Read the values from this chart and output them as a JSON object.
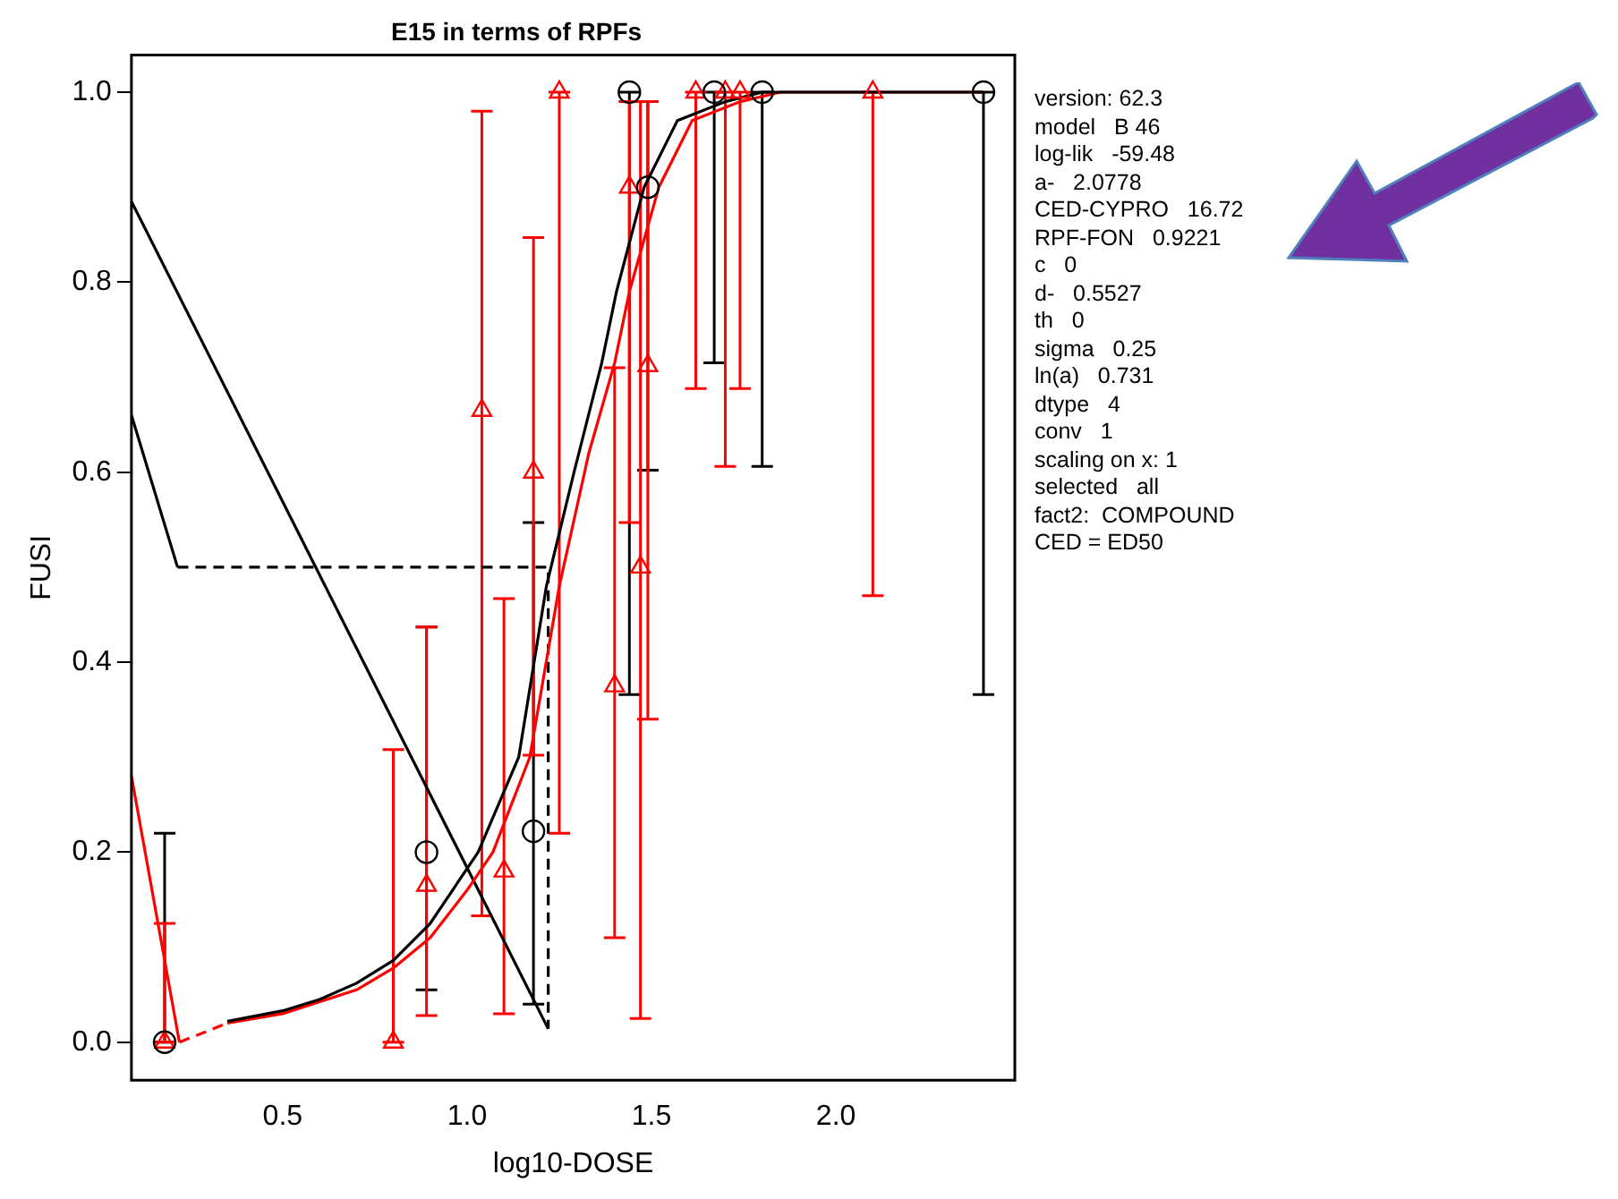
{
  "chart_data": {
    "type": "scatter",
    "title": "E15 in terms of RPFs",
    "xlabel": "log10-DOSE",
    "ylabel": "FUSI",
    "xlim": [
      0.09,
      2.485
    ],
    "ylim": [
      -0.04,
      1.039
    ],
    "xticks": [
      0.5,
      {
        "value": 1,
        "label": "1.0"
      },
      1.5,
      {
        "value": 2,
        "label": "2.0"
      }
    ],
    "yticks": [
      {
        "value": 0,
        "label": "0.0"
      },
      0.2,
      0.4,
      0.6,
      0.8,
      {
        "value": 1,
        "label": "1.0"
      }
    ],
    "grid": false,
    "legend": false,
    "series": [
      {
        "type": "scatter",
        "color": "#000000",
        "marker": "circle",
        "x": [
          0.18,
          0.89,
          1.18,
          1.44,
          1.49,
          1.67,
          1.8,
          2.4
        ],
        "values": [
          0,
          0.2,
          0.222,
          1,
          0.9,
          1,
          1,
          1
        ],
        "errors": [
          [
            0,
            0.22
          ],
          [
            0.055,
            0.437
          ],
          [
            0.04,
            0.547
          ],
          [
            0.366,
            1
          ],
          [
            0.602,
            0.99
          ],
          [
            0.715,
            1
          ],
          [
            0.606,
            1
          ],
          [
            0.366,
            1
          ]
        ]
      },
      {
        "type": "scatter",
        "color": "#ff0000",
        "marker": "triangle",
        "x": [
          0.18,
          0.8,
          0.89,
          1.04,
          1.1,
          1.18,
          1.25,
          1.4,
          1.44,
          1.47,
          1.49,
          1.62,
          1.7,
          1.74,
          2.1
        ],
        "values": [
          0,
          0,
          0.165,
          0.665,
          0.18,
          0.6,
          1,
          0.375,
          0.9,
          0.5,
          0.712,
          1,
          1,
          1,
          1
        ],
        "errors": [
          [
            0,
            0.125
          ],
          [
            0,
            0.308
          ],
          [
            0.028,
            0.437
          ],
          [
            0.133,
            0.98
          ],
          [
            0.03,
            0.467
          ],
          [
            0.302,
            0.847
          ],
          [
            0.22,
            1
          ],
          [
            0.11,
            0.71
          ],
          [
            0.547,
            0.99
          ],
          [
            0.025,
            0.99
          ],
          [
            0.34,
            0.99
          ],
          [
            0.688,
            1
          ],
          [
            0.606,
            1
          ],
          [
            0.688,
            1
          ],
          [
            0.47,
            1
          ]
        ]
      },
      {
        "type": "line",
        "color": "#000000",
        "line_style": "solid",
        "x": [
          0.35,
          0.5,
          0.6,
          0.7,
          0.8,
          0.9,
          1.03,
          1.14,
          1.215,
          1.29,
          1.365,
          1.405,
          1.48,
          1.57,
          1.7,
          1.8,
          2.4
        ],
        "values": [
          0.022,
          0.033,
          0.045,
          0.062,
          0.086,
          0.125,
          0.2,
          0.3,
          0.48,
          0.6,
          0.715,
          0.79,
          0.9,
          0.97,
          0.99,
          1,
          1
        ]
      },
      {
        "type": "line",
        "color": "#ff0000",
        "line_style": "solid",
        "x": [
          0.35,
          0.5,
          0.7,
          0.8,
          0.9,
          1.0,
          1.07,
          1.17,
          1.25,
          1.33,
          1.4,
          1.44,
          1.52,
          1.61,
          1.74,
          1.85,
          2.4
        ],
        "values": [
          0.02,
          0.03,
          0.055,
          0.078,
          0.11,
          0.16,
          0.2,
          0.3,
          0.48,
          0.62,
          0.715,
          0.79,
          0.9,
          0.97,
          0.99,
          1,
          1
        ]
      },
      {
        "type": "line",
        "color": "#000000",
        "line_style": "solid",
        "x": [
          0.09,
          1.22
        ],
        "values": [
          0.885,
          0.014
        ]
      },
      {
        "type": "line",
        "color": "#000000",
        "line_style": "solid",
        "x": [
          0.09,
          0.215
        ],
        "values": [
          0.66,
          0.5
        ]
      },
      {
        "type": "line",
        "color": "#000000",
        "line_style": "dashed",
        "x": [
          0.215,
          1.22,
          1.22
        ],
        "values": [
          0.5,
          0.5,
          0.014
        ]
      },
      {
        "type": "line",
        "color": "#ff0000",
        "line_style": "solid",
        "x": [
          0.09,
          0.22
        ],
        "values": [
          0.28,
          0
        ]
      },
      {
        "type": "line",
        "color": "#ff0000",
        "line_style": "dashed",
        "x": [
          0.22,
          0.35
        ],
        "values": [
          0,
          0.02
        ]
      }
    ],
    "annotations": [
      "version: 62.3",
      "model   B 46",
      "log-lik   -59.48",
      "a-   2.0778",
      "CED-CYPRO   16.72",
      "RPF-FON   0.9221",
      "c   0",
      "d-   0.5527",
      "th   0",
      "sigma   0.25",
      "ln(a)   0.731",
      "dtype   4",
      "conv   1",
      "scaling on x: 1",
      "selected   all",
      "fact2:  COMPOUND",
      "CED = ED50"
    ]
  }
}
